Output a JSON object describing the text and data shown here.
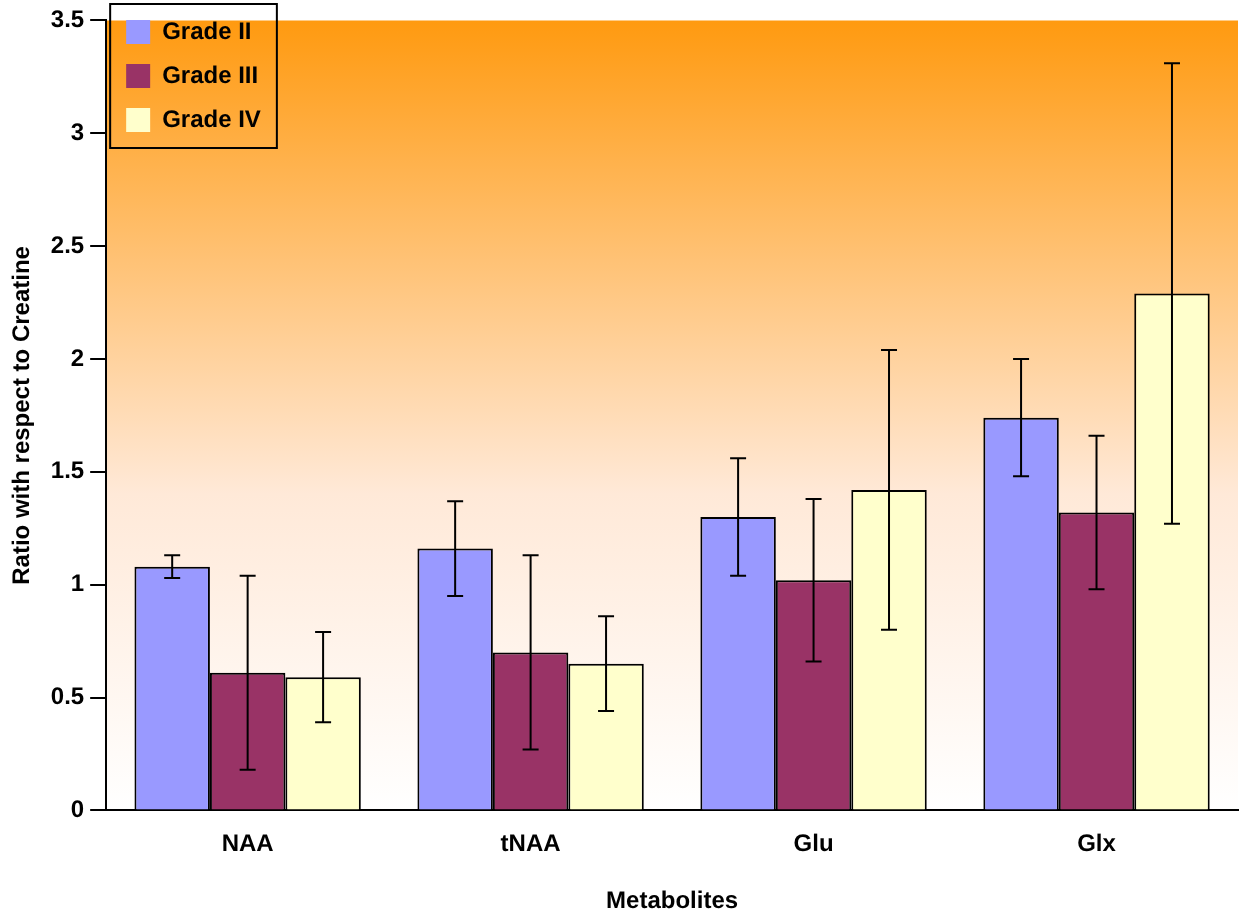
{
  "chart_data": {
    "type": "bar",
    "xlabel": "Metabolites",
    "ylabel": "Ratio with respect to Creatine",
    "categories": [
      "NAA",
      "tNAA",
      "Glu",
      "Glx"
    ],
    "series": [
      {
        "name": "Grade II",
        "color": "#9999ff",
        "values": [
          1.08,
          1.16,
          1.3,
          1.74
        ],
        "errors": [
          0.05,
          0.21,
          0.26,
          0.26
        ]
      },
      {
        "name": "Grade III",
        "color": "#993366",
        "values": [
          0.61,
          0.7,
          1.02,
          1.32
        ],
        "errors": [
          0.43,
          0.43,
          0.36,
          0.34
        ]
      },
      {
        "name": "Grade IV",
        "color": "#ffffcc",
        "values": [
          0.59,
          0.65,
          1.42,
          2.29
        ],
        "errors": [
          0.2,
          0.21,
          0.62,
          1.02
        ]
      }
    ],
    "ylim": [
      0,
      3.5
    ],
    "yticks": [
      0,
      0.5,
      1,
      1.5,
      2,
      2.5,
      3,
      3.5
    ],
    "grid": false,
    "legend": "top left"
  }
}
